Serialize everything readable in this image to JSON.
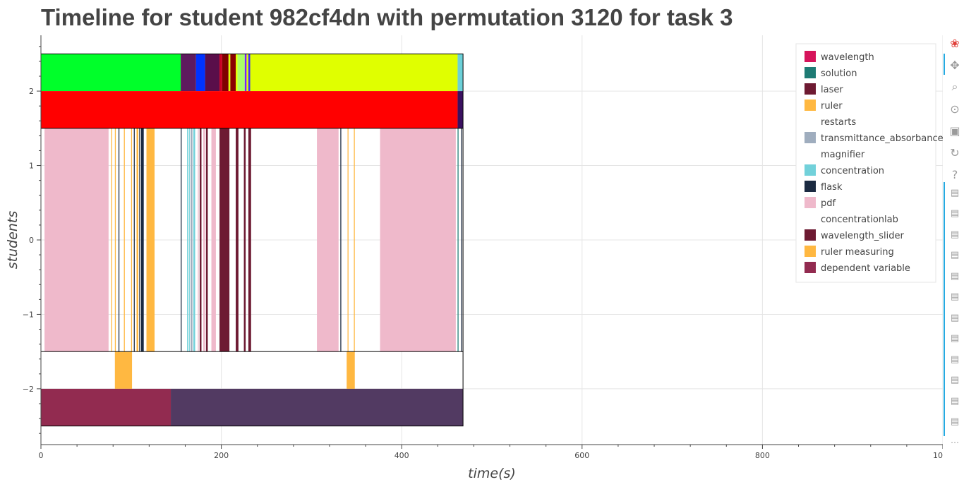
{
  "title": "Timeline for student 982cf4dn with permutation 3120 for task 3",
  "chart_data": {
    "type": "timeline",
    "title": "Timeline for student 982cf4dn with permutation 3120 for task 3",
    "xlabel": "time(s)",
    "ylabel": "students",
    "xlim": [
      0,
      1000
    ],
    "ylim": [
      -2.75,
      2.75
    ],
    "x_ticks": [
      0,
      200,
      400,
      600,
      800,
      1000
    ],
    "x_tick_labels": [
      "0",
      "200",
      "400",
      "600",
      "800",
      "1000"
    ],
    "y_ticks": [
      2,
      1,
      0,
      -1,
      -2
    ],
    "y_tick_labels": [
      "2",
      "1",
      "0",
      "−1",
      "−2"
    ],
    "grid": true,
    "legend_position": "top-right",
    "legend": [
      {
        "label": "wavelength",
        "color": "#d6145b"
      },
      {
        "label": "solution",
        "color": "#1e7b74"
      },
      {
        "label": "laser",
        "color": "#6e1a32"
      },
      {
        "label": "ruler",
        "color": "#ffb841"
      },
      {
        "label": "restarts",
        "color": "#ffffff"
      },
      {
        "label": "transmittance_absorbance",
        "color": "#9fadbe"
      },
      {
        "label": "magnifier",
        "color": "#ffffff"
      },
      {
        "label": "concentration",
        "color": "#72d1da"
      },
      {
        "label": "flask",
        "color": "#1b2a41"
      },
      {
        "label": "pdf",
        "color": "#efb9cb"
      },
      {
        "label": "concentrationlab",
        "color": "#ffffff"
      },
      {
        "label": "wavelength_slider",
        "color": "#6d1a32"
      },
      {
        "label": "ruler measuring",
        "color": "#ffb841"
      },
      {
        "label": "dependent variable",
        "color": "#922b50"
      }
    ],
    "rows": [
      {
        "y0": 2,
        "y1": 2.5,
        "segments": [
          {
            "x0": 0,
            "x1": 155,
            "color": "#00ff2a"
          },
          {
            "x0": 155,
            "x1": 172,
            "color": "#5e1a5e"
          },
          {
            "x0": 172,
            "x1": 182,
            "color": "#0033ff"
          },
          {
            "x0": 182,
            "x1": 198,
            "color": "#5a0e4a"
          },
          {
            "x0": 198,
            "x1": 201,
            "color": "#cc0022"
          },
          {
            "x0": 201,
            "x1": 208,
            "color": "#800000"
          },
          {
            "x0": 208,
            "x1": 210,
            "color": "#e0ff00"
          },
          {
            "x0": 210,
            "x1": 216,
            "color": "#8a0000"
          },
          {
            "x0": 216,
            "x1": 218,
            "color": "#e0ff00"
          },
          {
            "x0": 218,
            "x1": 226,
            "color": "#aaff66"
          },
          {
            "x0": 226,
            "x1": 228,
            "color": "#7a1cff"
          },
          {
            "x0": 228,
            "x1": 230,
            "color": "#e0ff00"
          },
          {
            "x0": 230,
            "x1": 232,
            "color": "#3a2aff"
          },
          {
            "x0": 232,
            "x1": 462,
            "color": "#e0ff00"
          },
          {
            "x0": 462,
            "x1": 468,
            "color": "#6cd0d8"
          }
        ]
      },
      {
        "y0": 1.5,
        "y1": 2,
        "segments": [
          {
            "x0": 0,
            "x1": 462,
            "color": "#ff0000"
          },
          {
            "x0": 462,
            "x1": 468,
            "color": "#3a1060"
          }
        ]
      },
      {
        "y0": -1.5,
        "y1": 1.5,
        "segments": [
          {
            "x0": 4,
            "x1": 75,
            "color": "#efb9cb"
          },
          {
            "x0": 78,
            "x1": 79,
            "color": "#ffb841"
          },
          {
            "x0": 82,
            "x1": 83,
            "color": "#ffb841"
          },
          {
            "x0": 86,
            "x1": 87,
            "color": "#1b2a41"
          },
          {
            "x0": 92,
            "x1": 93,
            "color": "#ffb841"
          },
          {
            "x0": 100,
            "x1": 101,
            "color": "#ffb841"
          },
          {
            "x0": 103,
            "x1": 104,
            "color": "#1b2a41"
          },
          {
            "x0": 106,
            "x1": 108,
            "color": "#ffb841"
          },
          {
            "x0": 109,
            "x1": 110,
            "color": "#1b2a41"
          },
          {
            "x0": 111,
            "x1": 114,
            "color": "#1b2a41"
          },
          {
            "x0": 117,
            "x1": 126,
            "color": "#ffb841"
          },
          {
            "x0": 155,
            "x1": 156,
            "color": "#1b2a41"
          },
          {
            "x0": 162,
            "x1": 163,
            "color": "#72d1da"
          },
          {
            "x0": 164,
            "x1": 165,
            "color": "#72d1da"
          },
          {
            "x0": 166,
            "x1": 168,
            "color": "#9fadbe"
          },
          {
            "x0": 169,
            "x1": 171,
            "color": "#72d1da"
          },
          {
            "x0": 174,
            "x1": 175,
            "color": "#efb9cb"
          },
          {
            "x0": 176,
            "x1": 178,
            "color": "#6d1a32"
          },
          {
            "x0": 180,
            "x1": 182,
            "color": "#efb9cb"
          },
          {
            "x0": 183,
            "x1": 185,
            "color": "#6d1a32"
          },
          {
            "x0": 189,
            "x1": 194,
            "color": "#efb9cb"
          },
          {
            "x0": 198,
            "x1": 209,
            "color": "#6d1a32"
          },
          {
            "x0": 216,
            "x1": 219,
            "color": "#6d1a32"
          },
          {
            "x0": 225,
            "x1": 227,
            "color": "#6d1a32"
          },
          {
            "x0": 230,
            "x1": 233,
            "color": "#6d1a32"
          },
          {
            "x0": 306,
            "x1": 330,
            "color": "#efb9cb"
          },
          {
            "x0": 332,
            "x1": 333,
            "color": "#1b2a41"
          },
          {
            "x0": 340,
            "x1": 341,
            "color": "#ffb841"
          },
          {
            "x0": 347,
            "x1": 348,
            "color": "#ffb841"
          },
          {
            "x0": 376,
            "x1": 460,
            "color": "#efb9cb"
          },
          {
            "x0": 462,
            "x1": 463,
            "color": "#1e7b74"
          },
          {
            "x0": 466,
            "x1": 467,
            "color": "#1b2a41"
          }
        ]
      },
      {
        "y0": -2,
        "y1": -1.5,
        "segments": [
          {
            "x0": 82,
            "x1": 101,
            "color": "#ffb841"
          },
          {
            "x0": 339,
            "x1": 348,
            "color": "#ffb841"
          }
        ]
      },
      {
        "y0": -2.5,
        "y1": -2,
        "segments": [
          {
            "x0": 0,
            "x1": 144,
            "color": "#922b50"
          },
          {
            "x0": 144,
            "x1": 468,
            "color": "#523a62"
          }
        ]
      }
    ],
    "row_outlines": [
      {
        "y0": 1.5,
        "y1": 2.5,
        "x0": 0,
        "x1": 468
      },
      {
        "y0": -2.5,
        "y1": -1.5,
        "x0": 0,
        "x1": 468
      }
    ]
  },
  "toolbar": {
    "tools": [
      {
        "name": "bokeh-logo-icon",
        "glyph": "❀",
        "color": "#e0403a"
      },
      {
        "name": "pan-icon",
        "glyph": "✥",
        "color": "#9a9a9a"
      },
      {
        "name": "box-zoom-icon",
        "glyph": "⌕",
        "color": "#9a9a9a"
      },
      {
        "name": "wheel-zoom-icon",
        "glyph": "⊙",
        "color": "#9a9a9a"
      },
      {
        "name": "save-icon",
        "glyph": "▣",
        "color": "#9a9a9a"
      },
      {
        "name": "reset-icon",
        "glyph": "↻",
        "color": "#9a9a9a"
      },
      {
        "name": "help-icon",
        "glyph": "?",
        "color": "#9a9a9a"
      }
    ],
    "hover_tool_count": 12,
    "hover_glyph": "▤",
    "more_glyph": "⋯"
  }
}
